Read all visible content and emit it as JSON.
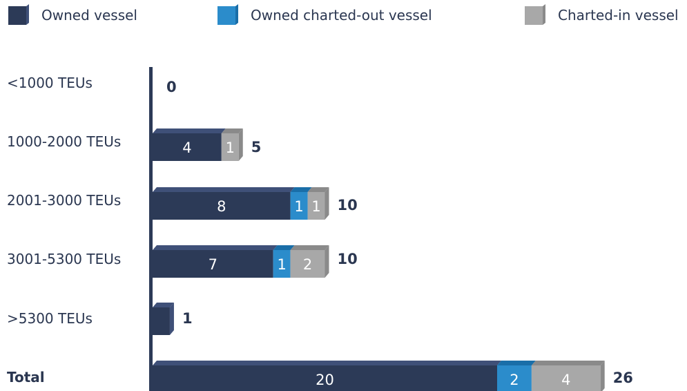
{
  "colors": {
    "owned": "#2c3a57",
    "owned_top": "#3f5078",
    "charted_out": "#2b8ccb",
    "charted_out_top": "#1a6ea8",
    "charted_in": "#a8a8a8",
    "charted_in_top": "#8a8a8a",
    "axis": "#2c3a57",
    "text": "#2a3650"
  },
  "chart_data": {
    "type": "bar",
    "orientation": "horizontal",
    "stacked": true,
    "legend_position": "top",
    "categories": [
      "<1000 TEUs",
      "1000-2000 TEUs",
      "2001-3000 TEUs",
      "3001-5300 TEUs",
      ">5300 TEUs",
      "Total"
    ],
    "series": [
      {
        "name": "Owned vessel",
        "values": [
          0,
          4,
          8,
          7,
          1,
          20
        ]
      },
      {
        "name": "Owned  charted-out vessel",
        "values": [
          0,
          0,
          1,
          1,
          0,
          2
        ]
      },
      {
        "name": "Charted-in vessel",
        "values": [
          0,
          1,
          1,
          2,
          0,
          4
        ]
      }
    ],
    "totals": [
      0,
      5,
      10,
      10,
      1,
      26
    ]
  }
}
